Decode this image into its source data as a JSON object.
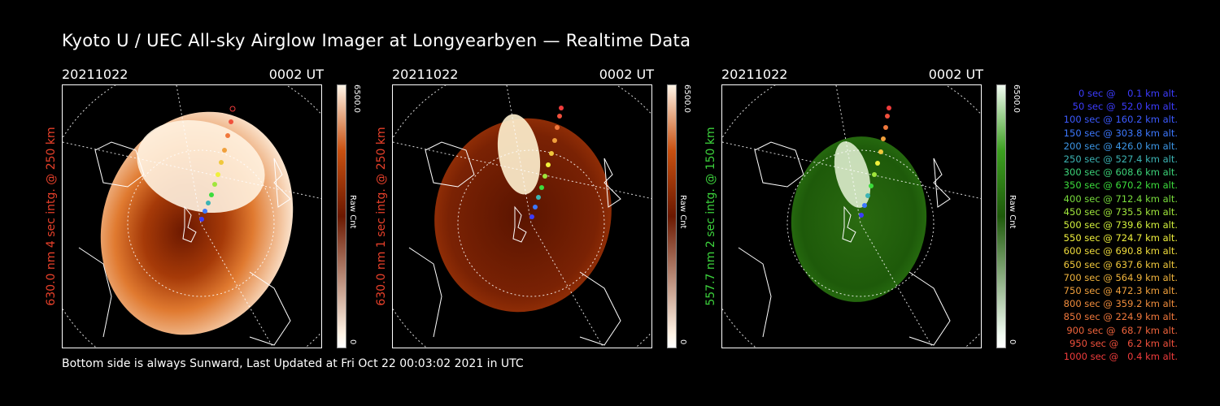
{
  "title": "Kyoto U / UEC All-sky Airglow Imager at Longyearbyen — Realtime Data",
  "footer": "Bottom side is always Sunward, Last Updated at Fri Oct 22 00:03:02 2021 in UTC",
  "panels": [
    {
      "date": "20211022",
      "time": "0002 UT",
      "ylabel": "630.0 nm 4 sec intg. @ 250 km",
      "label_color": "#e8402a",
      "cbar_max": "6500.0",
      "cbar_min": "0",
      "cbar_unit": "Raw Cnt",
      "colormap": "red-hot"
    },
    {
      "date": "20211022",
      "time": "0002 UT",
      "ylabel": "630.0 nm 1 sec intg. @ 250 km",
      "label_color": "#e8402a",
      "cbar_max": "6500.0",
      "cbar_min": "0",
      "cbar_unit": "Raw Cnt",
      "colormap": "red-hot"
    },
    {
      "date": "20211022",
      "time": "0002 UT",
      "ylabel": "557.7 nm 2 sec intg. @ 150 km",
      "label_color": "#3cd23c",
      "cbar_max": "6500.0",
      "cbar_min": "0",
      "cbar_unit": "Raw Cnt",
      "colormap": "green"
    }
  ],
  "legend": [
    {
      "text": "   0 sec @    0.1 km alt.",
      "color": "#3c3cff"
    },
    {
      "text": "  50 sec @  52.0 km alt.",
      "color": "#3c3cff"
    },
    {
      "text": " 100 sec @ 160.2 km alt.",
      "color": "#3c5aff"
    },
    {
      "text": " 150 sec @ 303.8 km alt.",
      "color": "#3c78ff"
    },
    {
      "text": " 200 sec @ 426.0 km alt.",
      "color": "#3c96e6"
    },
    {
      "text": " 250 sec @ 527.4 km alt.",
      "color": "#3cb4b4"
    },
    {
      "text": " 300 sec @ 608.6 km alt.",
      "color": "#3cd278"
    },
    {
      "text": " 350 sec @ 670.2 km alt.",
      "color": "#3cdc3c"
    },
    {
      "text": " 400 sec @ 712.4 km alt.",
      "color": "#78dc3c"
    },
    {
      "text": " 450 sec @ 735.5 km alt.",
      "color": "#a0e63c"
    },
    {
      "text": " 500 sec @ 739.6 km alt.",
      "color": "#d2f03c"
    },
    {
      "text": " 550 sec @ 724.7 km alt.",
      "color": "#f0f03c"
    },
    {
      "text": " 600 sec @ 690.8 km alt.",
      "color": "#f0dc3c"
    },
    {
      "text": " 650 sec @ 637.6 km alt.",
      "color": "#f0c83c"
    },
    {
      "text": " 700 sec @ 564.9 km alt.",
      "color": "#f0b43c"
    },
    {
      "text": " 750 sec @ 472.3 km alt.",
      "color": "#f0a03c"
    },
    {
      "text": " 800 sec @ 359.2 km alt.",
      "color": "#f08c3c"
    },
    {
      "text": " 850 sec @ 224.9 km alt.",
      "color": "#f0783c"
    },
    {
      "text": " 900 sec @  68.7 km alt.",
      "color": "#f0643c"
    },
    {
      "text": " 950 sec @   6.2 km alt.",
      "color": "#f0503c"
    },
    {
      "text": "1000 sec @   0.4 km alt.",
      "color": "#f03c3c"
    }
  ]
}
